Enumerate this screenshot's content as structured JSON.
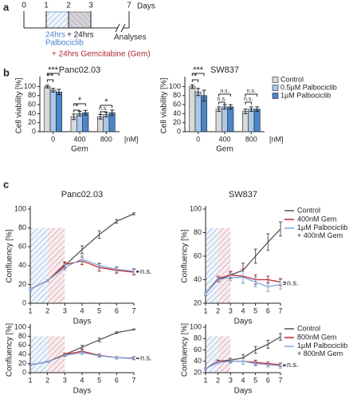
{
  "panels": [
    "a",
    "b",
    "c"
  ],
  "timeline": {
    "ticks": [
      "0",
      "1",
      "2",
      "3",
      "7"
    ],
    "unit": "Days",
    "palbo_time": "24hrs",
    "palbo": "Palbociclib",
    "plus_time": "+ 24hrs",
    "analyses": "Analyses",
    "gem": "+ 24hrs Gemcitabine (Gem)"
  },
  "chart_data": [
    {
      "type": "bar",
      "title": "Panc02.03",
      "ylabel": "Cell viability [%]",
      "xlabel": "Gem",
      "xunit": "[nM]",
      "categories": [
        "0",
        "400",
        "800"
      ],
      "ylim": [
        0,
        115
      ],
      "yticks": [
        0,
        20,
        40,
        60,
        80,
        100
      ],
      "series": [
        {
          "color": "#d9d9d9",
          "values": [
            100,
            33,
            33
          ],
          "errors": [
            3,
            6,
            5
          ]
        },
        {
          "color": "#a9c8ea",
          "values": [
            92,
            40,
            38
          ],
          "errors": [
            4,
            5,
            5
          ]
        },
        {
          "color": "#4a86c8",
          "values": [
            88,
            42,
            42
          ],
          "errors": [
            6,
            5,
            6
          ]
        }
      ],
      "annotations": [
        "***",
        "**",
        "*",
        "*",
        "n.s.",
        "*"
      ]
    },
    {
      "type": "bar",
      "title": "SW837",
      "ylabel": "Cell viability [%]",
      "xlabel": "Gem",
      "xunit": "[nM]",
      "categories": [
        "0",
        "400",
        "800"
      ],
      "ylim": [
        0,
        115
      ],
      "yticks": [
        0,
        20,
        40,
        60,
        80,
        100
      ],
      "series": [
        {
          "name": "Control",
          "color": "#d9d9d9",
          "values": [
            100,
            50,
            45
          ],
          "errors": [
            4,
            5,
            5
          ]
        },
        {
          "name": "0.5µM Palbociclib",
          "color": "#a9c8ea",
          "values": [
            88,
            55,
            50
          ],
          "errors": [
            8,
            5,
            5
          ]
        },
        {
          "name": "1µM Palbociclib",
          "color": "#4a86c8",
          "values": [
            80,
            55,
            50
          ],
          "errors": [
            12,
            5,
            5
          ]
        }
      ],
      "annotations": [
        "***",
        "*",
        "n.s.",
        "n.s.",
        "n.s.",
        "n.s."
      ]
    },
    {
      "type": "line",
      "title": "Panc02.03",
      "ylabel": "Confluency [%]",
      "xlabel": "Days",
      "x": [
        1,
        2,
        3,
        4,
        5,
        6,
        7
      ],
      "xlim": [
        1,
        7
      ],
      "xticks": [
        1,
        2,
        3,
        4,
        5,
        6,
        7
      ],
      "ylim": [
        0,
        100
      ],
      "yticks": [
        0,
        20,
        40,
        60,
        80,
        100
      ],
      "series": [
        {
          "color": "#555555",
          "values": [
            15,
            24,
            40,
            57,
            73,
            87,
            95
          ],
          "errors": [
            1,
            1,
            3,
            4,
            4,
            2,
            1
          ]
        },
        {
          "color": "#c0272d",
          "values": [
            15,
            24,
            41,
            45,
            38,
            35,
            33
          ],
          "errors": [
            1,
            1,
            3,
            4,
            4,
            3,
            3
          ]
        },
        {
          "color": "#7fa7d9",
          "values": [
            15,
            24,
            38,
            47,
            40,
            36,
            34
          ],
          "errors": [
            1,
            1,
            3,
            4,
            3,
            3,
            3
          ]
        }
      ],
      "annotations": [
        "n.s."
      ]
    },
    {
      "type": "line",
      "title": "SW837",
      "ylabel": "Confluency [%]",
      "xlabel": "Days",
      "x": [
        1,
        2,
        3,
        4,
        5,
        6,
        7
      ],
      "xlim": [
        1,
        7
      ],
      "xticks": [
        1,
        2,
        3,
        4,
        5,
        6,
        7
      ],
      "ylim": [
        20,
        100
      ],
      "yticks": [
        20,
        40,
        60,
        80,
        100
      ],
      "series": [
        {
          "name": "Control",
          "color": "#555555",
          "values": [
            28,
            40,
            44,
            48,
            60,
            72,
            83
          ],
          "errors": [
            1,
            2,
            3,
            6,
            6,
            7,
            6
          ]
        },
        {
          "name": "400nM Gem",
          "color": "#c0272d",
          "values": [
            28,
            41,
            44,
            43,
            40,
            40,
            38
          ],
          "errors": [
            1,
            2,
            3,
            6,
            4,
            3,
            3
          ]
        },
        {
          "name": "1µM Palbociclib\n+ 400nM Gem",
          "color": "#7fa7d9",
          "values": [
            28,
            40,
            42,
            42,
            38,
            34,
            36
          ],
          "errors": [
            1,
            2,
            3,
            5,
            4,
            4,
            4
          ]
        }
      ],
      "annotations": [
        "n.s."
      ]
    },
    {
      "type": "line",
      "ylabel": "Confluency [%]",
      "xlabel": "Days",
      "x": [
        1,
        2,
        3,
        4,
        5,
        6,
        7
      ],
      "xlim": [
        1,
        7
      ],
      "xticks": [
        1,
        2,
        3,
        4,
        5,
        6,
        7
      ],
      "ylim": [
        0,
        100
      ],
      "yticks": [
        0,
        20,
        40,
        60,
        80,
        100
      ],
      "series": [
        {
          "color": "#555555",
          "values": [
            17,
            24,
            40,
            56,
            72,
            88,
            95
          ],
          "errors": [
            1,
            1,
            3,
            4,
            4,
            2,
            1
          ]
        },
        {
          "color": "#c0272d",
          "values": [
            17,
            24,
            40,
            47,
            38,
            33,
            32
          ],
          "errors": [
            1,
            1,
            3,
            4,
            3,
            3,
            3
          ]
        },
        {
          "color": "#7fa7d9",
          "values": [
            17,
            24,
            38,
            44,
            37,
            33,
            31
          ],
          "errors": [
            1,
            1,
            3,
            4,
            3,
            3,
            3
          ]
        }
      ],
      "annotations": [
        "n.s."
      ]
    },
    {
      "type": "line",
      "ylabel": "Confluency [%]",
      "xlabel": "Days",
      "x": [
        1,
        2,
        3,
        4,
        5,
        6,
        7
      ],
      "xlim": [
        1,
        7
      ],
      "xticks": [
        1,
        2,
        3,
        4,
        5,
        6,
        7
      ],
      "ylim": [
        20,
        100
      ],
      "yticks": [
        20,
        40,
        60,
        80,
        100
      ],
      "series": [
        {
          "name": "Control",
          "color": "#555555",
          "values": [
            27,
            40,
            42,
            46,
            60,
            70,
            83
          ],
          "errors": [
            1,
            2,
            3,
            6,
            6,
            7,
            6
          ]
        },
        {
          "name": "800nM Gem",
          "color": "#c0272d",
          "values": [
            27,
            40,
            40,
            40,
            38,
            36,
            34
          ],
          "errors": [
            1,
            2,
            3,
            5,
            4,
            3,
            3
          ]
        },
        {
          "name": "1µM Palbociclib\n+ 800nM Gem",
          "color": "#7fa7d9",
          "values": [
            27,
            38,
            40,
            40,
            36,
            34,
            32
          ],
          "errors": [
            1,
            2,
            3,
            5,
            4,
            4,
            4
          ]
        }
      ],
      "annotations": [
        "n.s."
      ]
    }
  ]
}
